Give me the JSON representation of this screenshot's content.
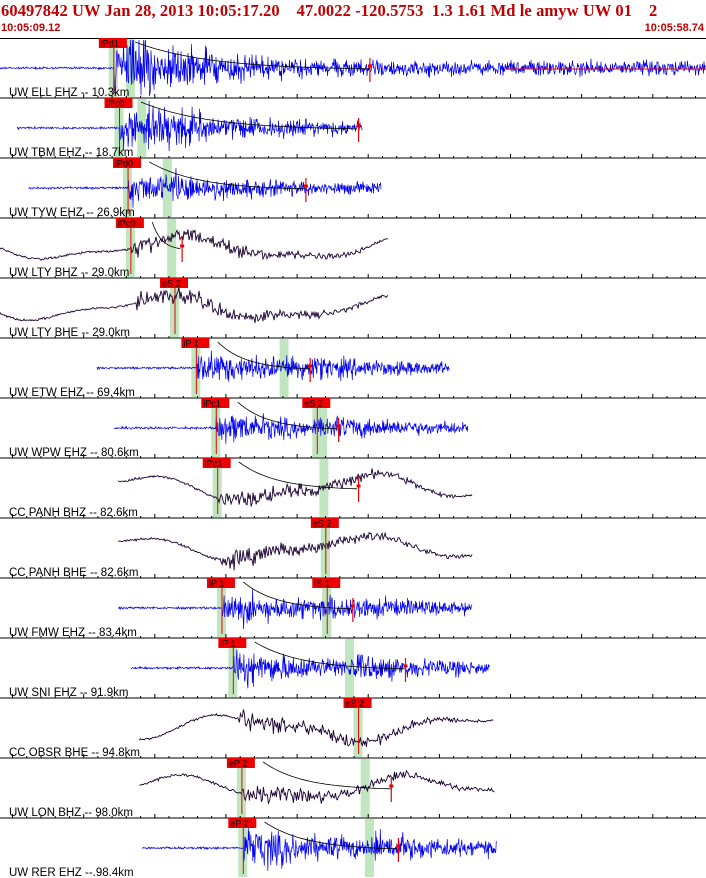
{
  "header": {
    "title": "60497842 UW Jan 28, 2013 10:05:17.20    47.0022 -120.5753  1.3 1.61 Md le amyw UW 01    2",
    "time_start": "10:05:09.12",
    "time_end": "10:05:58.74"
  },
  "colors": {
    "title": "#c00000",
    "trace_ehz": "#0000ee",
    "trace_broadband": "#1a0033",
    "pick_box": "#ee0000",
    "pick_window": "#bfe6bf",
    "coda": "#000000"
  },
  "chart_data": {
    "type": "seismogram",
    "x_range_seconds": [
      0,
      49.62
    ],
    "traces": [
      {
        "label": "UW ELL EHZ -- 10.3km",
        "color": "blue",
        "start": 0.0,
        "end": 49.6,
        "onset": 8.0,
        "amp": 1.0,
        "picks": [
          {
            "label": "iPd1",
            "time": 8.0
          }
        ],
        "s_time": 9.2,
        "coda_end": 26
      },
      {
        "label": "UW TBM EHZ -- 18.7km",
        "color": "blue",
        "start": 1.2,
        "end": 25.5,
        "onset": 8.4,
        "amp": 0.8,
        "picks": [
          {
            "label": "iPc0",
            "time": 8.4
          }
        ],
        "s_time": 10.0,
        "coda_end": 25.2
      },
      {
        "label": "UW TYW EHZ -- 26.9km",
        "color": "blue",
        "start": 2.0,
        "end": 26.8,
        "onset": 9.0,
        "amp": 0.6,
        "picks": [
          {
            "label": "iPd0",
            "time": 9.0
          }
        ],
        "s_time": 11.8,
        "coda_end": 21.5
      },
      {
        "label": "UW LTY BHZ -- 29.0km",
        "color": "dark",
        "start": 0.0,
        "end": 27.3,
        "onset": 9.2,
        "amp": 0.5,
        "picks": [
          {
            "label": "iPc0",
            "time": 9.2
          }
        ],
        "s_time": 12.1,
        "coda_end": 12.8
      },
      {
        "label": "UW LTY BHE -- 29.0km",
        "color": "dark",
        "start": 0.0,
        "end": 27.3,
        "onset": 9.5,
        "amp": 0.5,
        "picks": [
          {
            "label": "eS 2",
            "time": 12.3
          }
        ],
        "s_time": 12.3,
        "coda_end": 0
      },
      {
        "label": "UW ETW EHZ -- 69.4km",
        "color": "blue",
        "start": 6.8,
        "end": 31.6,
        "onset": 13.8,
        "amp": 0.65,
        "picks": [
          {
            "label": "iP 1",
            "time": 13.8
          }
        ],
        "s_time": 20.0,
        "coda_end": 21.8
      },
      {
        "label": "UW WPW EHZ -- 80.6km",
        "color": "blue",
        "start": 8.0,
        "end": 32.9,
        "onset": 15.2,
        "amp": 0.6,
        "picks": [
          {
            "label": "iPc1",
            "time": 15.2
          },
          {
            "label": "eS 2",
            "time": 22.3
          }
        ],
        "s_time": 22.7,
        "coda_end": 23.8
      },
      {
        "label": "CC PANH BHZ -- 82.6km",
        "color": "dark",
        "start": 8.3,
        "end": 33.2,
        "onset": 15.3,
        "amp": 0.55,
        "picks": [
          {
            "label": "iPc1",
            "time": 15.3
          }
        ],
        "s_time": 22.8,
        "coda_end": 25.2
      },
      {
        "label": "CC PANH BHE -- 82.6km",
        "color": "dark",
        "start": 8.3,
        "end": 33.2,
        "onset": 15.4,
        "amp": 0.5,
        "picks": [
          {
            "label": "eS 2",
            "time": 22.9
          }
        ],
        "s_time": 22.9,
        "coda_end": 0
      },
      {
        "label": "UW FMW EHZ -- 83.4km",
        "color": "blue",
        "start": 8.3,
        "end": 33.2,
        "onset": 15.6,
        "amp": 0.65,
        "picks": [
          {
            "label": "iP 1",
            "time": 15.6
          },
          {
            "label": "iS 1",
            "time": 23.0
          }
        ],
        "s_time": 23.0,
        "coda_end": 24.8
      },
      {
        "label": "UW SNI EHZ -- 91.9km",
        "color": "blue",
        "start": 9.2,
        "end": 34.4,
        "onset": 16.4,
        "amp": 0.7,
        "picks": [
          {
            "label": "iP 1",
            "time": 16.4
          }
        ],
        "s_time": 24.6,
        "coda_end": 28.5
      },
      {
        "label": "CC OBSR BHE -- 94.8km",
        "color": "dark",
        "start": 9.8,
        "end": 34.7,
        "onset": 16.8,
        "amp": 0.55,
        "picks": [
          {
            "label": "eS 2",
            "time": 25.2
          }
        ],
        "s_time": 25.2,
        "coda_end": 0
      },
      {
        "label": "UW LON BHZ -- 98.0km",
        "color": "dark",
        "start": 9.8,
        "end": 34.8,
        "onset": 17.0,
        "amp": 0.5,
        "picks": [
          {
            "label": "eP 2",
            "time": 17.0
          }
        ],
        "s_time": 25.7,
        "coda_end": 27.5
      },
      {
        "label": "UW RER EHZ --.98.4km",
        "color": "blue",
        "start": 10.0,
        "end": 34.9,
        "onset": 17.1,
        "amp": 0.8,
        "picks": [
          {
            "label": "eP 2",
            "time": 17.1
          }
        ],
        "s_time": 26.0,
        "coda_end": 28.0
      }
    ]
  }
}
